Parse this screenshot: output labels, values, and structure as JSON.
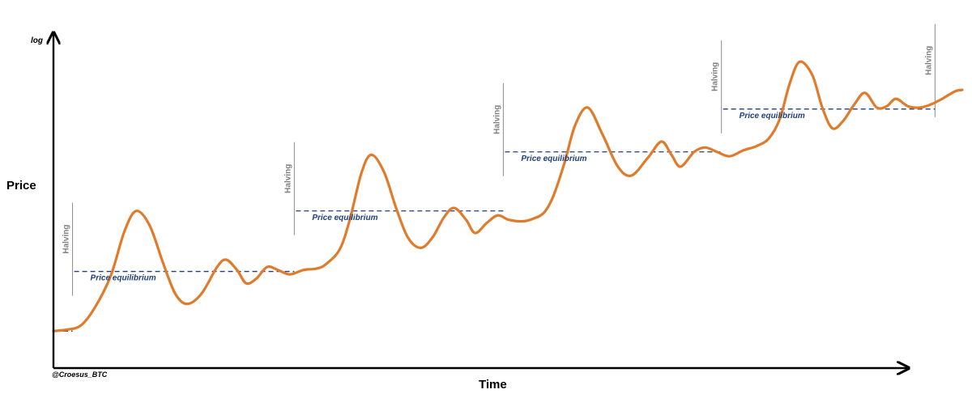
{
  "chart_data": {
    "type": "line",
    "title": "",
    "xlabel": "Time",
    "ylabel": "Price",
    "y_scale_label": "log",
    "credit": "@Croesus_BTC",
    "grid": false,
    "legend": "none",
    "x_range": [
      0,
      100
    ],
    "y_range": [
      0,
      100
    ],
    "colors": {
      "price_line": "#e07b2c",
      "equilibrium": "#1f3f7a",
      "halving_line": "#8c8c8c",
      "halving_text": "#7f7f7f",
      "axis": "#000000"
    },
    "series": [
      {
        "values": [
          [
            0,
            4.3
          ],
          [
            1.5,
            4.8
          ],
          [
            3,
            6.2
          ],
          [
            4.5,
            12
          ],
          [
            6.3,
            23
          ],
          [
            7.8,
            38
          ],
          [
            9.1,
            45
          ],
          [
            10.6,
            40
          ],
          [
            12.1,
            27
          ],
          [
            13.4,
            17
          ],
          [
            14.7,
            13.5
          ],
          [
            16.3,
            17
          ],
          [
            18,
            26
          ],
          [
            19,
            28.5
          ],
          [
            20.2,
            25
          ],
          [
            21.2,
            20.5
          ],
          [
            22.3,
            22
          ],
          [
            23.5,
            26
          ],
          [
            24.7,
            25
          ],
          [
            26,
            23.5
          ],
          [
            27.5,
            25
          ],
          [
            29,
            25.5
          ],
          [
            30,
            27
          ],
          [
            31.5,
            32
          ],
          [
            32.6,
            42
          ],
          [
            33.9,
            58
          ],
          [
            35,
            64
          ],
          [
            36.4,
            58
          ],
          [
            37.7,
            46
          ],
          [
            39,
            36
          ],
          [
            40.4,
            32.5
          ],
          [
            41.7,
            36
          ],
          [
            43,
            43
          ],
          [
            44.1,
            46
          ],
          [
            45.4,
            42
          ],
          [
            46.4,
            37.5
          ],
          [
            47.7,
            41
          ],
          [
            48.9,
            43.5
          ],
          [
            50.1,
            42
          ],
          [
            51.7,
            41.5
          ],
          [
            52.9,
            42.5
          ],
          [
            54,
            44.5
          ],
          [
            55,
            50
          ],
          [
            56.2,
            61
          ],
          [
            57.4,
            74
          ],
          [
            58.8,
            80
          ],
          [
            60.4,
            71
          ],
          [
            62.1,
            60
          ],
          [
            63.6,
            57
          ],
          [
            65.4,
            63
          ],
          [
            66.9,
            68.5
          ],
          [
            68,
            64
          ],
          [
            69,
            60
          ],
          [
            70.5,
            65
          ],
          [
            71.7,
            66.5
          ],
          [
            73,
            65
          ],
          [
            74.4,
            63.5
          ],
          [
            75.9,
            65.5
          ],
          [
            77.4,
            67
          ],
          [
            78.7,
            69.5
          ],
          [
            79.9,
            76
          ],
          [
            81,
            88
          ],
          [
            82.1,
            95.5
          ],
          [
            83.5,
            91
          ],
          [
            84.6,
            80
          ],
          [
            85.7,
            73
          ],
          [
            86.9,
            75.5
          ],
          [
            88.1,
            81
          ],
          [
            89.3,
            85
          ],
          [
            90.6,
            80
          ],
          [
            91.7,
            80.5
          ],
          [
            92.7,
            83
          ],
          [
            94,
            80.5
          ],
          [
            95.3,
            80
          ],
          [
            96.5,
            81
          ],
          [
            97.8,
            83
          ],
          [
            99.2,
            85.5
          ],
          [
            100,
            86
          ]
        ]
      }
    ],
    "halvings": [
      {
        "x": 2.1,
        "label": "Halving"
      },
      {
        "x": 26.5,
        "label": "Halving"
      },
      {
        "x": 49.5,
        "label": "Halving"
      },
      {
        "x": 73.5,
        "label": "Halving"
      },
      {
        "x": 97,
        "label": "Halving"
      }
    ],
    "equilibrium_levels": [
      {
        "x_start": 0,
        "x_end": 2.1,
        "y": 4.3,
        "label": ""
      },
      {
        "x_start": 2.1,
        "x_end": 26.5,
        "y": 24.5,
        "label": "Price equilibrium"
      },
      {
        "x_start": 26.5,
        "x_end": 49.5,
        "y": 45,
        "label": "Price equilibrium"
      },
      {
        "x_start": 49.5,
        "x_end": 73.5,
        "y": 65,
        "label": "Price equilibrium"
      },
      {
        "x_start": 73.5,
        "x_end": 97,
        "y": 79.5,
        "label": "Price equilibrium"
      }
    ]
  }
}
